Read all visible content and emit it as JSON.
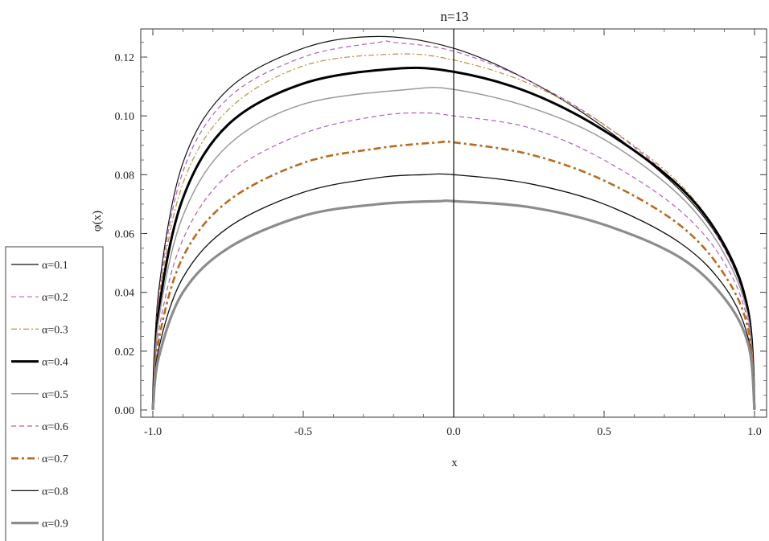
{
  "chart_data": {
    "type": "line",
    "title": "n=13",
    "xlabel": "x",
    "ylabel": "φ(x)",
    "xlim": [
      -1.0,
      1.0
    ],
    "ylim": [
      -0.003,
      0.129
    ],
    "x_ticks": [
      -1.0,
      -0.5,
      0.0,
      0.5,
      1.0
    ],
    "x_tick_labels": [
      "-1.0",
      "-0.5",
      "0.0",
      "0.5",
      "1.0"
    ],
    "y_ticks": [
      0.0,
      0.02,
      0.04,
      0.06,
      0.08,
      0.1,
      0.12
    ],
    "y_tick_labels": [
      "0.00",
      "0.02",
      "0.04",
      "0.06",
      "0.08",
      "0.10",
      "0.12"
    ],
    "grid": false,
    "legend_position": "outside-bottom-left",
    "series": [
      {
        "name": "α=0.1",
        "color": "#111111",
        "dash": "solid",
        "width": 1.2,
        "points": [
          [
            -1.0,
            0.0
          ],
          [
            -0.98,
            0.041
          ],
          [
            -0.9,
            0.084
          ],
          [
            -0.75,
            0.109
          ],
          [
            -0.5,
            0.123
          ],
          [
            -0.25,
            0.127
          ],
          [
            0.0,
            0.123
          ],
          [
            0.25,
            0.112
          ],
          [
            0.5,
            0.096
          ],
          [
            0.75,
            0.075
          ],
          [
            0.9,
            0.055
          ],
          [
            0.98,
            0.032
          ],
          [
            1.0,
            0.0
          ]
        ]
      },
      {
        "name": "α=0.2",
        "color": "#b060b0",
        "dash": "dashed",
        "width": 1.2,
        "points": [
          [
            -1.0,
            0.0
          ],
          [
            -0.98,
            0.039
          ],
          [
            -0.9,
            0.081
          ],
          [
            -0.75,
            0.106
          ],
          [
            -0.5,
            0.12
          ],
          [
            -0.25,
            0.125
          ],
          [
            -0.2,
            0.125
          ],
          [
            0.0,
            0.122
          ],
          [
            0.25,
            0.112
          ],
          [
            0.5,
            0.097
          ],
          [
            0.75,
            0.076
          ],
          [
            0.9,
            0.055
          ],
          [
            0.98,
            0.032
          ],
          [
            1.0,
            0.0
          ]
        ]
      },
      {
        "name": "α=0.3",
        "color": "#b89040",
        "dash": "dashdot",
        "width": 1.2,
        "points": [
          [
            -1.0,
            0.0
          ],
          [
            -0.98,
            0.037
          ],
          [
            -0.9,
            0.077
          ],
          [
            -0.75,
            0.102
          ],
          [
            -0.5,
            0.117
          ],
          [
            -0.2,
            0.121
          ],
          [
            0.0,
            0.119
          ],
          [
            0.25,
            0.111
          ],
          [
            0.5,
            0.097
          ],
          [
            0.75,
            0.077
          ],
          [
            0.9,
            0.056
          ],
          [
            0.98,
            0.033
          ],
          [
            1.0,
            0.0
          ]
        ]
      },
      {
        "name": "α=0.4",
        "color": "#000000",
        "dash": "solid",
        "width": 3.0,
        "points": [
          [
            -1.0,
            0.0
          ],
          [
            -0.98,
            0.034
          ],
          [
            -0.9,
            0.072
          ],
          [
            -0.75,
            0.097
          ],
          [
            -0.5,
            0.111
          ],
          [
            -0.2,
            0.116
          ],
          [
            0.0,
            0.115
          ],
          [
            0.25,
            0.108
          ],
          [
            0.5,
            0.095
          ],
          [
            0.75,
            0.076
          ],
          [
            0.9,
            0.056
          ],
          [
            0.98,
            0.033
          ],
          [
            1.0,
            0.0
          ]
        ]
      },
      {
        "name": "α=0.5",
        "color": "#999999",
        "dash": "solid",
        "width": 1.5,
        "points": [
          [
            -1.0,
            0.0
          ],
          [
            -0.98,
            0.031
          ],
          [
            -0.9,
            0.066
          ],
          [
            -0.75,
            0.09
          ],
          [
            -0.5,
            0.104
          ],
          [
            -0.15,
            0.109
          ],
          [
            0.0,
            0.109
          ],
          [
            0.25,
            0.103
          ],
          [
            0.5,
            0.092
          ],
          [
            0.75,
            0.073
          ],
          [
            0.9,
            0.053
          ],
          [
            0.98,
            0.031
          ],
          [
            1.0,
            0.0
          ]
        ]
      },
      {
        "name": "α=0.6",
        "color": "#b060b0",
        "dash": "dashed",
        "width": 1.2,
        "points": [
          [
            -1.0,
            0.0
          ],
          [
            -0.98,
            0.027
          ],
          [
            -0.9,
            0.058
          ],
          [
            -0.75,
            0.08
          ],
          [
            -0.5,
            0.094
          ],
          [
            -0.25,
            0.1
          ],
          [
            -0.1,
            0.101
          ],
          [
            0.0,
            0.1
          ],
          [
            0.25,
            0.096
          ],
          [
            0.5,
            0.085
          ],
          [
            0.75,
            0.068
          ],
          [
            0.9,
            0.05
          ],
          [
            0.98,
            0.029
          ],
          [
            1.0,
            0.0
          ]
        ]
      },
      {
        "name": "α=0.7",
        "color": "#b86a20",
        "dash": "dashdot-thick",
        "width": 2.6,
        "points": [
          [
            -1.0,
            0.0
          ],
          [
            -0.98,
            0.024
          ],
          [
            -0.9,
            0.052
          ],
          [
            -0.75,
            0.071
          ],
          [
            -0.5,
            0.084
          ],
          [
            -0.25,
            0.089
          ],
          [
            -0.05,
            0.091
          ],
          [
            0.0,
            0.091
          ],
          [
            0.25,
            0.087
          ],
          [
            0.5,
            0.078
          ],
          [
            0.75,
            0.063
          ],
          [
            0.9,
            0.046
          ],
          [
            0.98,
            0.027
          ],
          [
            1.0,
            0.0
          ]
        ]
      },
      {
        "name": "α=0.8",
        "color": "#111111",
        "dash": "solid",
        "width": 1.3,
        "points": [
          [
            -1.0,
            0.0
          ],
          [
            -0.98,
            0.021
          ],
          [
            -0.9,
            0.045
          ],
          [
            -0.75,
            0.062
          ],
          [
            -0.5,
            0.074
          ],
          [
            -0.25,
            0.079
          ],
          [
            -0.1,
            0.08
          ],
          [
            0.0,
            0.08
          ],
          [
            0.25,
            0.077
          ],
          [
            0.5,
            0.07
          ],
          [
            0.75,
            0.057
          ],
          [
            0.9,
            0.042
          ],
          [
            0.98,
            0.024
          ],
          [
            1.0,
            0.0
          ]
        ]
      },
      {
        "name": "α=0.9",
        "color": "#8c8c8c",
        "dash": "solid",
        "width": 3.2,
        "points": [
          [
            -1.0,
            0.0
          ],
          [
            -0.98,
            0.018
          ],
          [
            -0.9,
            0.04
          ],
          [
            -0.75,
            0.055
          ],
          [
            -0.5,
            0.066
          ],
          [
            -0.25,
            0.07
          ],
          [
            -0.05,
            0.071
          ],
          [
            0.0,
            0.071
          ],
          [
            0.25,
            0.069
          ],
          [
            0.5,
            0.063
          ],
          [
            0.75,
            0.052
          ],
          [
            0.9,
            0.038
          ],
          [
            0.98,
            0.022
          ],
          [
            1.0,
            0.0
          ]
        ]
      }
    ]
  }
}
